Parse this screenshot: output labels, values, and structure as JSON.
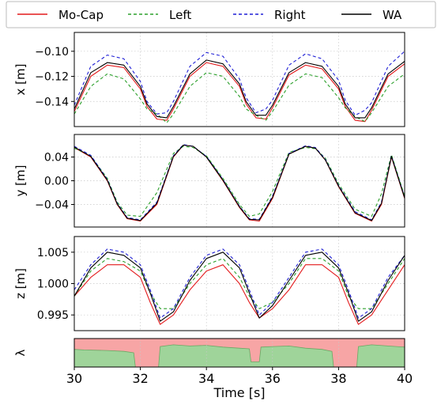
{
  "legend": {
    "placement": "top",
    "entries": [
      {
        "label": "Mo-Cap",
        "color": "#e31a1c",
        "dash": "solid"
      },
      {
        "label": "Left",
        "color": "#2ca02c",
        "dash": "dashed"
      },
      {
        "label": "Right",
        "color": "#1f1fd6",
        "dash": "dashed"
      },
      {
        "label": "WA",
        "color": "#000000",
        "dash": "solid"
      }
    ]
  },
  "colors": {
    "mocap": "#e31a1c",
    "left": "#2ca02c",
    "right": "#1f1fd6",
    "wa": "#000000",
    "lambda_high": "#f7a5a5",
    "lambda_low": "#9fd49a"
  },
  "chart_data": [
    {
      "type": "line",
      "ylabel": "x [m]",
      "xlim": [
        30,
        40
      ],
      "ylim": [
        -0.16,
        -0.085
      ],
      "yticks": [
        -0.1,
        -0.12,
        -0.14
      ],
      "ytick_labels": [
        "−0.10",
        "−0.12",
        "−0.14"
      ],
      "grid": true,
      "series": [
        {
          "name": "Mo-Cap",
          "x": [
            30,
            30.5,
            31,
            31.5,
            32,
            32.2,
            32.5,
            32.8,
            33,
            33.5,
            34,
            34.5,
            35,
            35.2,
            35.5,
            35.8,
            36,
            36.5,
            37,
            37.5,
            38,
            38.2,
            38.5,
            38.8,
            39,
            39.5,
            40
          ],
          "y": [
            -0.148,
            -0.12,
            -0.111,
            -0.113,
            -0.13,
            -0.144,
            -0.154,
            -0.155,
            -0.146,
            -0.12,
            -0.109,
            -0.112,
            -0.128,
            -0.142,
            -0.153,
            -0.154,
            -0.145,
            -0.119,
            -0.111,
            -0.114,
            -0.13,
            -0.144,
            -0.155,
            -0.156,
            -0.147,
            -0.12,
            -0.11
          ]
        },
        {
          "name": "Left",
          "x": [
            30,
            30.5,
            31,
            31.5,
            32,
            32.2,
            32.5,
            32.8,
            33,
            33.5,
            34,
            34.5,
            35,
            35.2,
            35.5,
            35.8,
            36,
            36.5,
            37,
            37.5,
            38,
            38.2,
            38.5,
            38.8,
            39,
            39.5,
            40
          ],
          "y": [
            -0.15,
            -0.128,
            -0.118,
            -0.122,
            -0.138,
            -0.146,
            -0.15,
            -0.157,
            -0.15,
            -0.128,
            -0.117,
            -0.12,
            -0.136,
            -0.146,
            -0.151,
            -0.155,
            -0.148,
            -0.127,
            -0.118,
            -0.121,
            -0.137,
            -0.145,
            -0.152,
            -0.156,
            -0.149,
            -0.128,
            -0.118
          ]
        },
        {
          "name": "Right",
          "x": [
            30,
            30.5,
            31,
            31.5,
            32,
            32.2,
            32.5,
            32.8,
            33,
            33.5,
            34,
            34.5,
            35,
            35.2,
            35.5,
            35.8,
            36,
            36.5,
            37,
            37.5,
            38,
            38.2,
            38.5,
            38.8,
            39,
            39.5,
            40
          ],
          "y": [
            -0.143,
            -0.112,
            -0.103,
            -0.106,
            -0.124,
            -0.14,
            -0.15,
            -0.149,
            -0.14,
            -0.112,
            -0.101,
            -0.104,
            -0.122,
            -0.137,
            -0.149,
            -0.146,
            -0.139,
            -0.111,
            -0.102,
            -0.106,
            -0.123,
            -0.139,
            -0.151,
            -0.147,
            -0.141,
            -0.112,
            -0.1
          ]
        },
        {
          "name": "WA",
          "x": [
            30,
            30.5,
            31,
            31.5,
            32,
            32.2,
            32.5,
            32.8,
            33,
            33.5,
            34,
            34.5,
            35,
            35.2,
            35.5,
            35.8,
            36,
            36.5,
            37,
            37.5,
            38,
            38.2,
            38.5,
            38.8,
            39,
            39.5,
            40
          ],
          "y": [
            -0.146,
            -0.117,
            -0.109,
            -0.111,
            -0.128,
            -0.142,
            -0.152,
            -0.153,
            -0.144,
            -0.118,
            -0.107,
            -0.11,
            -0.126,
            -0.14,
            -0.151,
            -0.151,
            -0.143,
            -0.117,
            -0.109,
            -0.112,
            -0.128,
            -0.142,
            -0.153,
            -0.153,
            -0.145,
            -0.118,
            -0.108
          ]
        }
      ]
    },
    {
      "type": "line",
      "ylabel": "y [m]",
      "xlim": [
        30,
        40
      ],
      "ylim": [
        -0.078,
        0.078
      ],
      "yticks": [
        0.04,
        0.0,
        -0.04
      ],
      "ytick_labels": [
        "0.04",
        "0.00",
        "−0.04"
      ],
      "grid": true,
      "series": [
        {
          "name": "Mo-Cap",
          "x": [
            30,
            30.5,
            31,
            31.3,
            31.6,
            32,
            32.5,
            33,
            33.3,
            33.6,
            34,
            34.5,
            35,
            35.3,
            35.6,
            36,
            36.5,
            37,
            37.3,
            37.6,
            38,
            38.5,
            39,
            39.3,
            39.6,
            40
          ],
          "y": [
            0.056,
            0.04,
            0.0,
            -0.04,
            -0.064,
            -0.068,
            -0.04,
            0.04,
            0.06,
            0.058,
            0.04,
            0.0,
            -0.045,
            -0.066,
            -0.068,
            -0.03,
            0.045,
            0.058,
            0.055,
            0.035,
            -0.01,
            -0.055,
            -0.068,
            -0.04,
            0.04,
            -0.03
          ]
        },
        {
          "name": "Left",
          "x": [
            30,
            30.5,
            31,
            31.3,
            31.6,
            32,
            32.5,
            33,
            33.3,
            33.6,
            34,
            34.5,
            35,
            35.3,
            35.6,
            36,
            36.5,
            37,
            37.3,
            37.6,
            38,
            38.5,
            39,
            39.3,
            39.6,
            40
          ],
          "y": [
            0.055,
            0.042,
            0.004,
            -0.036,
            -0.058,
            -0.06,
            -0.02,
            0.046,
            0.058,
            0.056,
            0.042,
            0.004,
            -0.04,
            -0.06,
            -0.056,
            -0.018,
            0.048,
            0.056,
            0.054,
            0.038,
            -0.005,
            -0.048,
            -0.06,
            -0.022,
            0.044,
            -0.026
          ]
        },
        {
          "name": "Right",
          "x": [
            30,
            30.5,
            31,
            31.3,
            31.6,
            32,
            32.5,
            33,
            33.3,
            33.6,
            34,
            34.5,
            35,
            35.3,
            35.6,
            36,
            36.5,
            37,
            37.3,
            37.6,
            38,
            38.5,
            39,
            39.3,
            39.6,
            40
          ],
          "y": [
            0.058,
            0.043,
            0.002,
            -0.038,
            -0.062,
            -0.066,
            -0.036,
            0.042,
            0.061,
            0.058,
            0.041,
            0.002,
            -0.043,
            -0.064,
            -0.065,
            -0.026,
            0.046,
            0.059,
            0.056,
            0.036,
            -0.008,
            -0.052,
            -0.066,
            -0.036,
            0.042,
            -0.028
          ]
        },
        {
          "name": "WA",
          "x": [
            30,
            30.5,
            31,
            31.3,
            31.6,
            32,
            32.5,
            33,
            33.3,
            33.6,
            34,
            34.5,
            35,
            35.3,
            35.6,
            36,
            36.5,
            37,
            37.3,
            37.6,
            38,
            38.5,
            39,
            39.3,
            39.6,
            40
          ],
          "y": [
            0.057,
            0.041,
            0.001,
            -0.039,
            -0.063,
            -0.067,
            -0.038,
            0.041,
            0.06,
            0.058,
            0.04,
            0.001,
            -0.044,
            -0.065,
            -0.066,
            -0.028,
            0.045,
            0.058,
            0.055,
            0.035,
            -0.009,
            -0.054,
            -0.067,
            -0.038,
            0.041,
            -0.029
          ]
        }
      ]
    },
    {
      "type": "line",
      "ylabel": "z [m]",
      "xlim": [
        30,
        40
      ],
      "ylim": [
        0.9925,
        1.0075
      ],
      "yticks": [
        1.005,
        1.0,
        0.995
      ],
      "ytick_labels": [
        "1.005",
        "1.000",
        "0.995"
      ],
      "grid": true,
      "series": [
        {
          "name": "Mo-Cap",
          "x": [
            30,
            30.5,
            31,
            31.5,
            32,
            32.3,
            32.6,
            33,
            33.5,
            34,
            34.5,
            35,
            35.3,
            35.6,
            36,
            36.5,
            37,
            37.5,
            38,
            38.3,
            38.6,
            39,
            39.5,
            40
          ],
          "y": [
            0.998,
            1.001,
            1.003,
            1.003,
            1.001,
            0.997,
            0.9935,
            0.995,
            0.999,
            1.002,
            1.003,
            1.0,
            0.997,
            0.9945,
            0.996,
            0.999,
            1.003,
            1.003,
            1.001,
            0.997,
            0.9935,
            0.995,
            0.999,
            1.003
          ]
        },
        {
          "name": "Left",
          "x": [
            30,
            30.5,
            31,
            31.5,
            32,
            32.3,
            32.6,
            33,
            33.5,
            34,
            34.5,
            35,
            35.3,
            35.6,
            36,
            36.5,
            37,
            37.5,
            38,
            38.3,
            38.6,
            39,
            39.5,
            40
          ],
          "y": [
            0.998,
            1.002,
            1.004,
            1.0035,
            1.002,
            0.9985,
            0.996,
            0.996,
            1.0,
            1.003,
            1.004,
            1.001,
            0.998,
            0.996,
            0.997,
            1.0,
            1.004,
            1.004,
            1.002,
            0.998,
            0.996,
            0.996,
            1.0,
            1.004
          ]
        },
        {
          "name": "Right",
          "x": [
            30,
            30.5,
            31,
            31.5,
            32,
            32.3,
            32.6,
            33,
            33.5,
            34,
            34.5,
            35,
            35.3,
            35.6,
            36,
            36.5,
            37,
            37.5,
            38,
            38.3,
            38.6,
            39,
            39.5,
            40
          ],
          "y": [
            0.999,
            1.003,
            1.0055,
            1.005,
            1.003,
            0.999,
            0.9945,
            0.996,
            1.001,
            1.0045,
            1.0055,
            1.003,
            0.999,
            0.995,
            0.997,
            1.001,
            1.005,
            1.0055,
            1.003,
            0.999,
            0.9945,
            0.996,
            1.001,
            1.0045
          ]
        },
        {
          "name": "WA",
          "x": [
            30,
            30.5,
            31,
            31.5,
            32,
            32.3,
            32.6,
            33,
            33.5,
            34,
            34.5,
            35,
            35.3,
            35.6,
            36,
            36.5,
            37,
            37.5,
            38,
            38.3,
            38.6,
            39,
            39.5,
            40
          ],
          "y": [
            0.998,
            1.0025,
            1.005,
            1.0045,
            1.0025,
            0.9985,
            0.994,
            0.9955,
            1.0005,
            1.004,
            1.005,
            1.0025,
            0.9985,
            0.9945,
            0.9965,
            1.0005,
            1.0045,
            1.005,
            1.0025,
            0.9985,
            0.994,
            0.9955,
            1.0005,
            1.0045
          ]
        }
      ]
    },
    {
      "type": "area",
      "ylabel": "λ",
      "xlabel": "Time [s]",
      "xlim": [
        30,
        40
      ],
      "ylim": [
        0,
        1
      ],
      "xticks": [
        30,
        32,
        34,
        36,
        38,
        40
      ],
      "xtick_labels": [
        "30",
        "32",
        "34",
        "36",
        "38",
        "40"
      ],
      "grid": true,
      "series": [
        {
          "name": "lambda",
          "x": [
            30,
            30.3,
            31,
            31.5,
            31.8,
            31.85,
            32.55,
            32.6,
            33,
            33.5,
            34,
            34.5,
            35,
            35.3,
            35.35,
            35.6,
            35.65,
            36,
            36.5,
            37,
            37.5,
            37.8,
            37.85,
            38.55,
            38.6,
            39,
            39.5,
            40
          ],
          "y": [
            0.62,
            0.6,
            0.58,
            0.55,
            0.5,
            0.0,
            0.0,
            0.72,
            0.78,
            0.74,
            0.76,
            0.7,
            0.66,
            0.64,
            0.18,
            0.18,
            0.7,
            0.72,
            0.74,
            0.66,
            0.62,
            0.55,
            0.0,
            0.0,
            0.72,
            0.78,
            0.74,
            0.7
          ]
        }
      ]
    }
  ]
}
